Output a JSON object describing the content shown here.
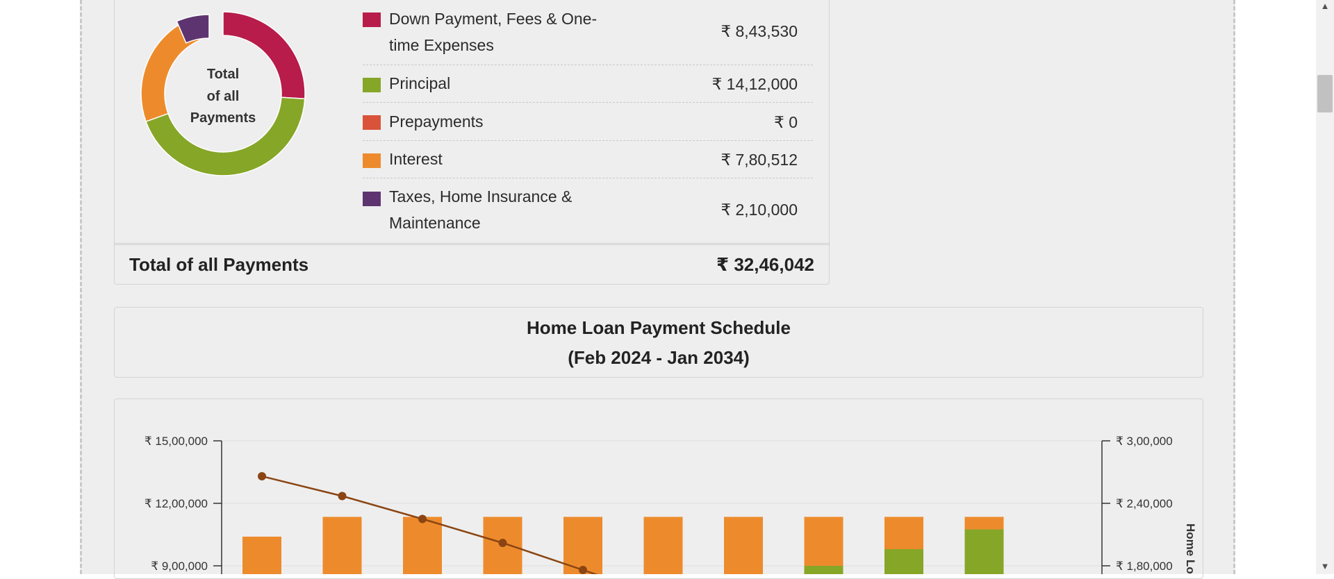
{
  "summary": {
    "donut_center_lines": [
      "Total",
      "of all",
      "Payments"
    ],
    "items": [
      {
        "label_lines": [
          "Down Payment, Fees & One-",
          "time Expenses"
        ],
        "value": "₹ 8,43,530",
        "color": "#b81c4a",
        "amount": 843530
      },
      {
        "label_lines": [
          "Principal"
        ],
        "value": "₹ 14,12,000",
        "color": "#86a628",
        "amount": 1412000
      },
      {
        "label_lines": [
          "Prepayments"
        ],
        "value": "₹ 0",
        "color": "#d9533a",
        "amount": 0
      },
      {
        "label_lines": [
          "Interest"
        ],
        "value": "₹ 7,80,512",
        "color": "#ed8b2c",
        "amount": 780512
      },
      {
        "label_lines": [
          "Taxes, Home Insurance &",
          "Maintenance"
        ],
        "value": "₹ 2,10,000",
        "color": "#5e3470",
        "amount": 210000
      }
    ],
    "total_label": "Total of all Payments",
    "total_value": "₹ 32,46,042"
  },
  "schedule": {
    "title": "Home Loan Payment Schedule",
    "subtitle": "(Feb 2024 - Jan 2034)"
  },
  "chart_data": {
    "type": "bar",
    "y_left_ticks": [
      "₹ 15,00,000",
      "₹ 12,00,000",
      "₹ 9,00,000"
    ],
    "y_right_ticks": [
      "₹ 3,00,000",
      "₹ 2,40,000",
      "₹ 1,80,000"
    ],
    "y_right_label": "Home Lo",
    "left_ylim_visible": [
      900000,
      1500000
    ],
    "right_ylim_visible": [
      180000,
      300000
    ],
    "series": [
      {
        "kind": "bar",
        "color": "#ed8b2c",
        "stack_top": [
          1040000,
          1135000,
          1135000,
          1135000,
          1135000,
          1135000,
          1135000,
          1135000,
          1135000,
          1135000
        ]
      },
      {
        "kind": "bar",
        "color": "#86a628",
        "stack_top": [
          0,
          0,
          0,
          0,
          0,
          0,
          0,
          900000,
          980000,
          1075000
        ]
      },
      {
        "kind": "line",
        "color": "#8b4513",
        "values": [
          1330000,
          1235000,
          1125000,
          1010000,
          880000
        ]
      }
    ]
  }
}
